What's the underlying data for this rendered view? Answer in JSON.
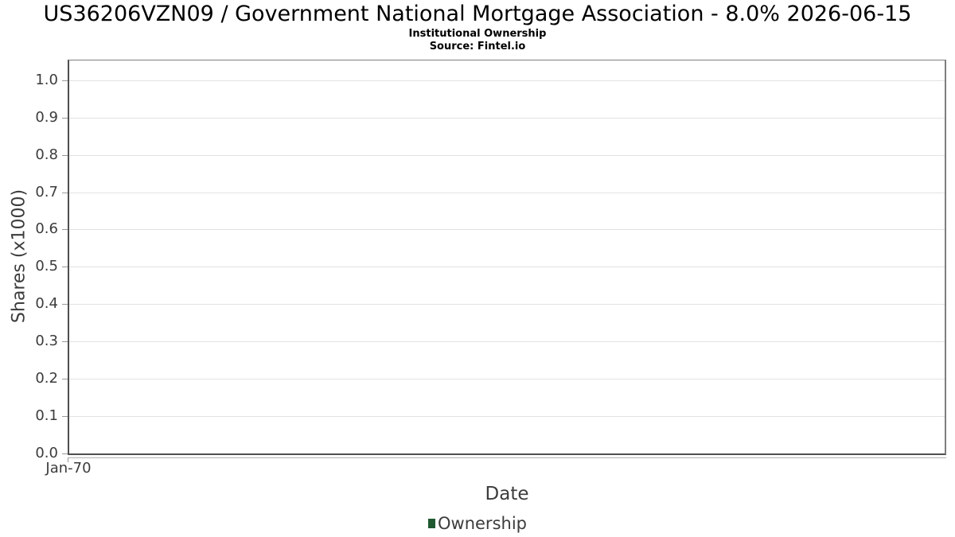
{
  "chart_data": {
    "type": "line",
    "title": "US36206VZN09 / Government National Mortgage Association - 8.0% 2026-06-15",
    "subtitle": "Institutional Ownership",
    "source": "Source: Fintel.io",
    "xlabel": "Date",
    "ylabel": "Shares (x1000)",
    "x_ticks": [
      "Jan-70"
    ],
    "y_ticks": [
      "0.0",
      "0.1",
      "0.2",
      "0.3",
      "0.4",
      "0.5",
      "0.6",
      "0.7",
      "0.8",
      "0.9",
      "1.0"
    ],
    "ylim": [
      0,
      1.055
    ],
    "grid": true,
    "legend": {
      "position": "bottom",
      "entries": [
        {
          "label": "Ownership",
          "color": "#205830"
        }
      ]
    },
    "series": [
      {
        "name": "Ownership",
        "x": [],
        "values": []
      }
    ],
    "colors": {
      "grid": "#e2e2e2",
      "axis_border_dark": "#4e4e4e",
      "axis_border_light": "#7e7e7e",
      "tick": "#999999",
      "x_axis_line": "#b3b3b3",
      "label_text": "#3c3c3c",
      "title_text": "#000000"
    }
  }
}
